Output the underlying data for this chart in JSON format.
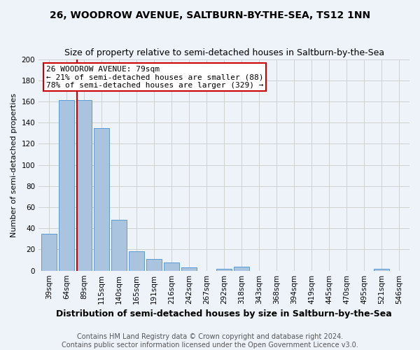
{
  "title": "26, WOODROW AVENUE, SALTBURN-BY-THE-SEA, TS12 1NN",
  "subtitle": "Size of property relative to semi-detached houses in Saltburn-by-the-Sea",
  "xlabel": "Distribution of semi-detached houses by size in Saltburn-by-the-Sea",
  "ylabel": "Number of semi-detached properties",
  "footnote1": "Contains HM Land Registry data © Crown copyright and database right 2024.",
  "footnote2": "Contains public sector information licensed under the Open Government Licence v3.0.",
  "categories": [
    "39sqm",
    "64sqm",
    "89sqm",
    "115sqm",
    "140sqm",
    "165sqm",
    "191sqm",
    "216sqm",
    "242sqm",
    "267sqm",
    "292sqm",
    "318sqm",
    "343sqm",
    "368sqm",
    "394sqm",
    "419sqm",
    "445sqm",
    "470sqm",
    "495sqm",
    "521sqm",
    "546sqm"
  ],
  "values": [
    35,
    161,
    161,
    135,
    48,
    18,
    11,
    8,
    3,
    0,
    2,
    4,
    0,
    0,
    0,
    0,
    0,
    0,
    0,
    2,
    0
  ],
  "bar_color": "#aac4e0",
  "bar_edge_color": "#5b9bd5",
  "grid_color": "#d0d0d0",
  "bg_color": "#eef2f9",
  "property_line_color": "#cc0000",
  "annotation_text": "26 WOODROW AVENUE: 79sqm\n← 21% of semi-detached houses are smaller (88)\n78% of semi-detached houses are larger (329) →",
  "annotation_box_facecolor": "#ffffff",
  "annotation_box_edgecolor": "#cc0000",
  "ylim": [
    0,
    200
  ],
  "yticks": [
    0,
    20,
    40,
    60,
    80,
    100,
    120,
    140,
    160,
    180,
    200
  ],
  "title_fontsize": 10,
  "subtitle_fontsize": 9,
  "xlabel_fontsize": 9,
  "ylabel_fontsize": 8,
  "tick_fontsize": 7.5,
  "annotation_fontsize": 8,
  "footnote_fontsize": 7
}
